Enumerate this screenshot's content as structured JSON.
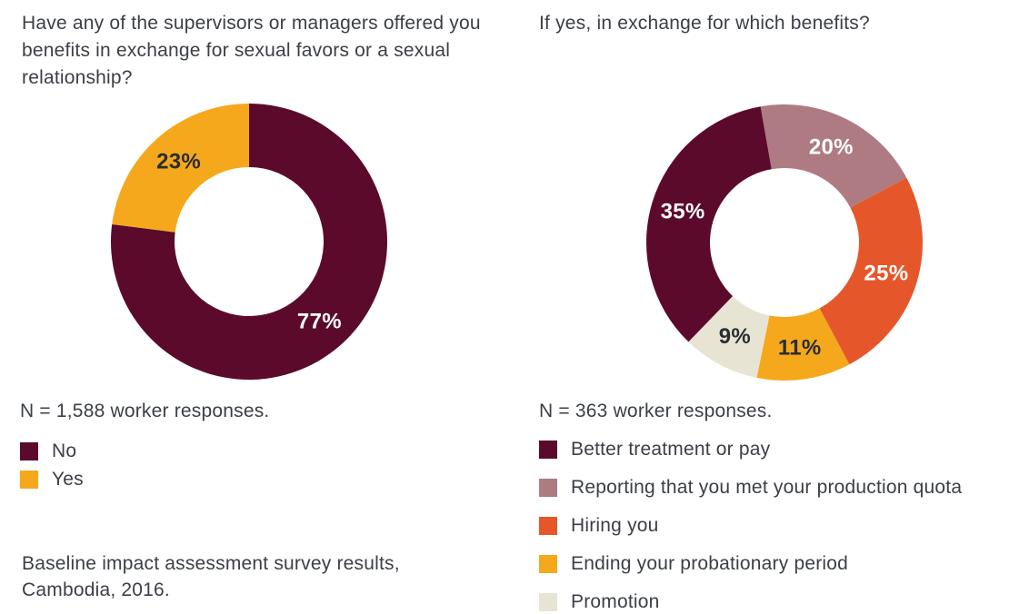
{
  "page": {
    "background": "#ffffff",
    "text_color": "#3b3f46"
  },
  "left_panel": {
    "title": "Have any of the supervisors or managers offered you benefits in exchange for sexual favors or a sexual relationship?",
    "sample_note": "N = 1,588 worker responses.",
    "source_note": "Baseline impact assessment survey results,\nCambodia, 2016."
  },
  "right_panel": {
    "title": "If yes, in exchange for which benefits?",
    "sample_note": "N = 363 worker responses."
  },
  "chart_data": [
    {
      "type": "pie",
      "subtype": "donut",
      "title": "Have any of the supervisors or managers offered you benefits in exchange for sexual favors or a sexual relationship?",
      "sample_size_text": "N = 1,588 worker responses.",
      "start_angle_deg": 0,
      "slices": [
        {
          "label": "No",
          "value": 77,
          "color": "#5c0a2b",
          "value_label": "77%",
          "value_label_color": "#ffffff"
        },
        {
          "label": "Yes",
          "value": 23,
          "color": "#f5a81c",
          "value_label": "23%",
          "value_label_color": "#2a2d33"
        }
      ],
      "legend": [
        {
          "label": "No",
          "color": "#5c0a2b"
        },
        {
          "label": "Yes",
          "color": "#f5a81c"
        }
      ],
      "legend_position": "bottom-left"
    },
    {
      "type": "pie",
      "subtype": "donut",
      "title": "If yes, in exchange for which benefits?",
      "sample_size_text": "N = 363 worker responses.",
      "start_angle_deg": -10,
      "slices": [
        {
          "label": "Reporting that you met your production quota",
          "value": 20,
          "color": "#ae7b82",
          "value_label": "20%",
          "value_label_color": "#ffffff"
        },
        {
          "label": "Hiring you",
          "value": 25,
          "color": "#e5572b",
          "value_label": "25%",
          "value_label_color": "#ffffff"
        },
        {
          "label": "Ending your probationary period",
          "value": 11,
          "color": "#f5a81c",
          "value_label": "11%",
          "value_label_color": "#2a2d33"
        },
        {
          "label": "Promotion",
          "value": 9,
          "color": "#e8e4d3",
          "value_label": "9%",
          "value_label_color": "#2a2d33"
        },
        {
          "label": "Better treatment or pay",
          "value": 35,
          "color": "#5c0a2b",
          "value_label": "35%",
          "value_label_color": "#ffffff"
        }
      ],
      "legend": [
        {
          "label": "Better treatment or pay",
          "color": "#5c0a2b"
        },
        {
          "label": "Reporting that you met your production quota",
          "color": "#ae7b82"
        },
        {
          "label": "Hiring you",
          "color": "#e5572b"
        },
        {
          "label": "Ending your probationary period",
          "color": "#f5a81c"
        },
        {
          "label": "Promotion",
          "color": "#e8e4d3"
        }
      ],
      "legend_position": "bottom-left"
    }
  ]
}
